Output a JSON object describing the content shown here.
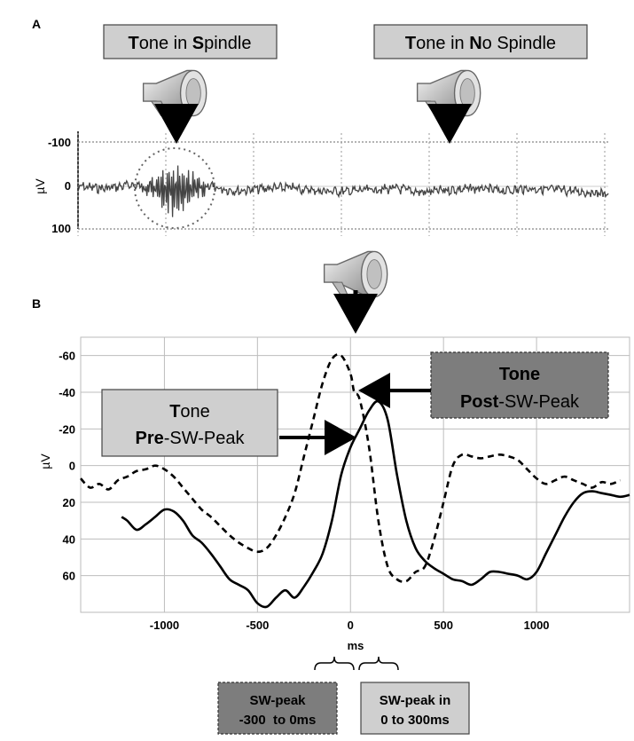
{
  "panels": {
    "a": {
      "letter": "A",
      "box_spindle": {
        "c1": "T",
        "t1": "one in ",
        "c2": "S",
        "t2": "pindle"
      },
      "box_nospindle": {
        "c1": "T",
        "t1": "one in ",
        "c2": "N",
        "t2": "o Spindle"
      },
      "ylabel": "µV",
      "yticks": [
        "-100",
        "0",
        "100"
      ]
    },
    "b": {
      "letter": "B",
      "ylabel": "µV",
      "xlabel": "ms",
      "box_pre": {
        "c1": "T",
        "t1": "one",
        "c2": "Pre",
        "t2": "-SW-Peak"
      },
      "box_post": {
        "line1": "Tone",
        "c2": "Post",
        "t2": "-SW-Peak"
      },
      "window_early": {
        "line1": "SW-peak",
        "line2": "-300  to 0ms"
      },
      "window_late": {
        "line1": "SW-peak in",
        "line2": "0 to 300ms"
      }
    }
  },
  "colors": {
    "box_light": "#cfcfcf",
    "box_dark": "#7d7d7d",
    "trace": "#000000",
    "grid": "#bdbdbd",
    "eeg": "#444444"
  },
  "chart_data": [
    {
      "type": "line",
      "title": "",
      "xlabel": "",
      "ylabel": "µV",
      "y_inverted": true,
      "ylim": [
        -100,
        100
      ],
      "yticks": [
        -100,
        0,
        100
      ],
      "grid": true,
      "annotations": [
        "Tone in Spindle",
        "Tone in No Spindle"
      ],
      "series": [
        {
          "style": "raw EEG",
          "x": [
            0,
            0.05,
            0.1,
            0.15,
            0.17,
            0.2,
            0.22,
            0.25,
            0.3,
            0.35,
            0.4,
            0.45,
            0.5,
            0.55,
            0.6,
            0.65,
            0.7,
            0.75,
            0.8,
            0.85,
            0.9,
            0.95,
            1.0
          ],
          "y": [
            0,
            5,
            -3,
            5,
            10,
            12,
            5,
            2,
            10,
            5,
            3,
            10,
            12,
            8,
            5,
            14,
            8,
            5,
            10,
            5,
            8,
            12,
            18
          ]
        }
      ]
    },
    {
      "type": "line",
      "title": "",
      "xlabel": "ms",
      "ylabel": "µV",
      "y_inverted": true,
      "xlim": [
        -1450,
        1500
      ],
      "ylim": [
        -70,
        80
      ],
      "xticks": [
        -1000,
        -500,
        0,
        500,
        1000
      ],
      "yticks": [
        -60,
        -40,
        -20,
        0,
        20,
        40,
        60
      ],
      "grid": true,
      "legend": "none",
      "series": [
        {
          "style": "solid",
          "x": [
            -1230,
            -1200,
            -1150,
            -1100,
            -1050,
            -1000,
            -950,
            -900,
            -850,
            -800,
            -750,
            -700,
            -650,
            -600,
            -550,
            -500,
            -450,
            -400,
            -350,
            -300,
            -250,
            -200,
            -150,
            -100,
            -50,
            0,
            50,
            100,
            150,
            200,
            250,
            300,
            350,
            400,
            450,
            500,
            550,
            600,
            650,
            700,
            750,
            800,
            850,
            900,
            950,
            1000,
            1050,
            1100,
            1150,
            1200,
            1250,
            1300,
            1350,
            1400,
            1450,
            1500
          ],
          "y": [
            28,
            30,
            35,
            32,
            28,
            24,
            25,
            30,
            38,
            42,
            48,
            55,
            62,
            65,
            68,
            75,
            77,
            72,
            68,
            72,
            66,
            58,
            48,
            30,
            5,
            -10,
            -20,
            -30,
            -35,
            -25,
            5,
            30,
            45,
            52,
            56,
            59,
            62,
            63,
            65,
            62,
            58,
            58,
            59,
            60,
            62,
            58,
            48,
            38,
            28,
            20,
            15,
            14,
            15,
            16,
            17,
            16
          ]
        },
        {
          "style": "dashed",
          "x": [
            -1450,
            -1400,
            -1350,
            -1300,
            -1250,
            -1200,
            -1150,
            -1100,
            -1050,
            -1000,
            -950,
            -900,
            -850,
            -800,
            -750,
            -700,
            -650,
            -600,
            -550,
            -500,
            -450,
            -400,
            -350,
            -300,
            -250,
            -200,
            -150,
            -100,
            -50,
            0,
            20,
            50,
            100,
            150,
            200,
            250,
            300,
            350,
            400,
            450,
            500,
            550,
            600,
            650,
            700,
            750,
            800,
            850,
            900,
            950,
            1000,
            1050,
            1100,
            1150,
            1200,
            1250,
            1300,
            1350,
            1400,
            1450
          ],
          "y": [
            7,
            12,
            10,
            13,
            8,
            6,
            3,
            2,
            0,
            2,
            6,
            12,
            18,
            24,
            28,
            33,
            38,
            42,
            45,
            47,
            45,
            38,
            28,
            15,
            -5,
            -25,
            -45,
            -58,
            -60,
            -50,
            -40,
            -36,
            -10,
            30,
            55,
            62,
            63,
            58,
            55,
            40,
            20,
            0,
            -6,
            -5,
            -4,
            -5,
            -6,
            -5,
            -3,
            2,
            7,
            10,
            8,
            6,
            8,
            10,
            12,
            9,
            10,
            8
          ]
        }
      ]
    }
  ]
}
